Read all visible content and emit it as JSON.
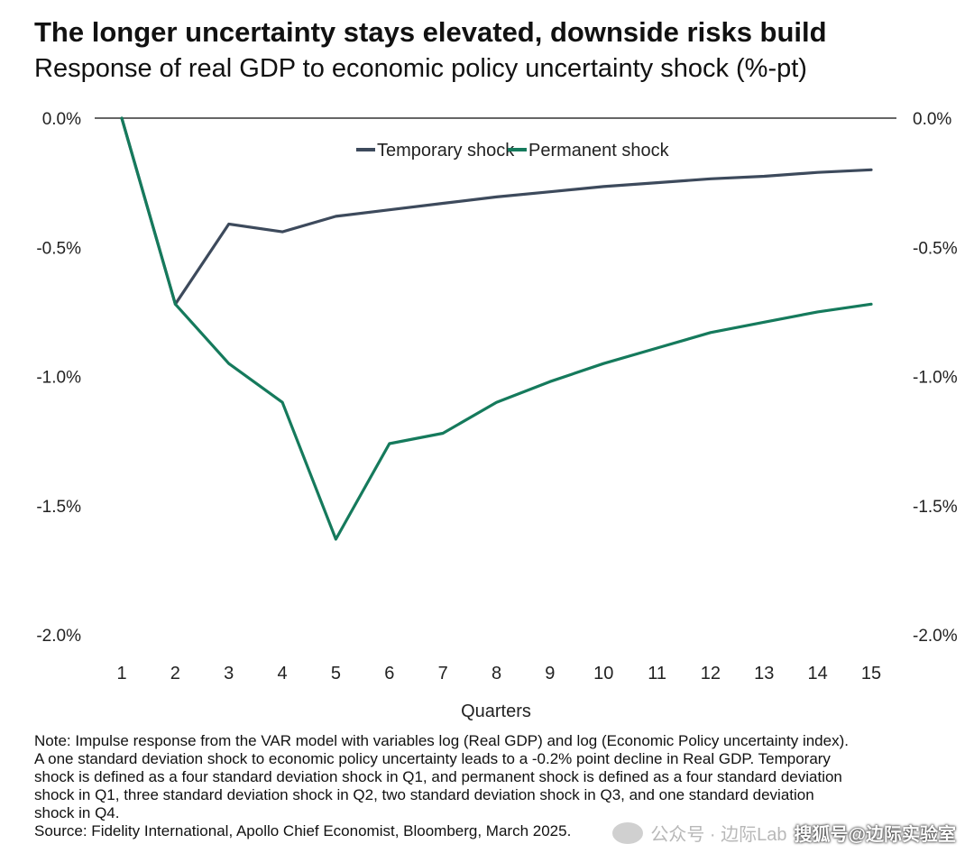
{
  "header": {
    "title": "The longer uncertainty stays elevated, downside risks build",
    "subtitle": "Response of real GDP to economic policy uncertainty shock (%-pt)"
  },
  "chart_data": {
    "type": "line",
    "title": "The longer uncertainty stays elevated, downside risks build",
    "subtitle": "Response of real GDP to economic policy uncertainty shock (%-pt)",
    "xlabel": "Quarters",
    "ylabel": "",
    "x": [
      1,
      2,
      3,
      4,
      5,
      6,
      7,
      8,
      9,
      10,
      11,
      12,
      13,
      14,
      15
    ],
    "ylim": [
      -2.0,
      0.0
    ],
    "y_ticks": [
      "0.0%",
      "-0.5%",
      "-1.0%",
      "-1.5%",
      "-2.0%"
    ],
    "y_tick_values": [
      0.0,
      -0.5,
      -1.0,
      -1.5,
      -2.0
    ],
    "y_axis_sides": "left and right",
    "legend_position": "top-center",
    "grid": false,
    "series": [
      {
        "name": "Temporary shock",
        "color": "#3d4a5c",
        "values": [
          0.0,
          -0.72,
          -0.41,
          -0.44,
          -0.38,
          -0.355,
          -0.33,
          -0.305,
          -0.285,
          -0.265,
          -0.25,
          -0.235,
          -0.225,
          -0.21,
          -0.2
        ]
      },
      {
        "name": "Permanent shock",
        "color": "#157a5c",
        "values": [
          0.0,
          -0.72,
          -0.95,
          -1.1,
          -1.63,
          -1.26,
          -1.22,
          -1.1,
          -1.02,
          -0.95,
          -0.89,
          -0.83,
          -0.79,
          -0.75,
          -0.72
        ]
      }
    ]
  },
  "note": {
    "lines": [
      "Note: Impulse response from the VAR model with variables log (Real GDP) and log (Economic Policy uncertainty index).",
      "A one standard deviation shock to economic policy uncertainty leads to a -0.2% point decline in Real GDP. Temporary",
      "shock is defined as a four standard deviation shock in Q1, and permanent shock is defined as a four standard deviation",
      "shock in Q1, three standard deviation shock in Q2, two standard deviation shock in Q3, and one standard deviation",
      "shock in Q4."
    ],
    "source": "Source: Fidelity International, Apollo Chief Economist, Bloomberg, March 2025."
  },
  "watermark": {
    "gray": "公众号 · 边际Lab",
    "dark": "搜狐号@边际实验室"
  }
}
